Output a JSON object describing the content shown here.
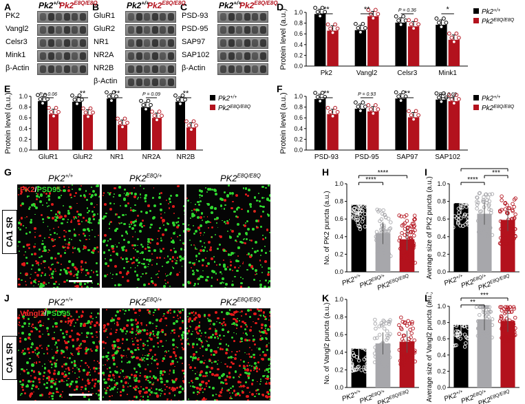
{
  "panels": {
    "A": {
      "letter": "A",
      "headers": [
        "Pk2+/+",
        "Pk2E8Q/E8Q"
      ],
      "rows": [
        "PK2",
        "Vangl2",
        "Celsr3",
        "Mink1",
        "β-Actin"
      ]
    },
    "B": {
      "letter": "B",
      "headers": [
        "Pk2+/+",
        "Pk2E8Q/E8Q"
      ],
      "rows": [
        "GluR1",
        "GluR2",
        "NR1",
        "NR2A",
        "NR2B",
        "β-Actin"
      ]
    },
    "C": {
      "letter": "C",
      "headers": [
        "Pk2+/+",
        "Pk2E8Q/E8Q"
      ],
      "rows": [
        "PSD-93",
        "PSD-95",
        "SAP97",
        "SAP102",
        "β-Actin"
      ]
    },
    "G": {
      "letter": "G",
      "cols": [
        "PK2+/+",
        "PK2E8Q/+",
        "PK2E8Q/E8Q"
      ],
      "stain_red": "PK2",
      "stain_green": "PSD95",
      "region": "CA1 SR"
    },
    "J": {
      "letter": "J",
      "cols": [
        "PK2+/+",
        "PK2E8Q/+",
        "PK2E8Q/E8Q"
      ],
      "stain_red": "Vangl2",
      "stain_green": "PSD95",
      "region": "CA1 SR"
    }
  },
  "legend": {
    "wt": "Pk2+/+",
    "mut": "Pk2E8Q/E8Q"
  },
  "colors": {
    "wt": "#000000",
    "mut": "#b3121d",
    "het": "#a7a7ab"
  },
  "chart_data": [
    {
      "id": "D",
      "type": "bar",
      "ylabel": "Protein level (a.u.)",
      "ylim": [
        0,
        1.0
      ],
      "categories": [
        "Pk2",
        "Vangl2",
        "Celsr3",
        "Mink1"
      ],
      "series": [
        {
          "name": "Pk2+/+",
          "values": [
            0.97,
            0.67,
            0.81,
            0.77
          ]
        },
        {
          "name": "Pk2E8Q/E8Q",
          "values": [
            0.66,
            0.93,
            0.74,
            0.49
          ]
        }
      ],
      "annotations": [
        "**",
        "**",
        "P = 0.36",
        "*"
      ]
    },
    {
      "id": "E",
      "type": "bar",
      "ylabel": "Protein level (a.u.)",
      "ylim": [
        0,
        1.0
      ],
      "categories": [
        "GluR1",
        "GluR2",
        "NR1",
        "NR2A",
        "NR2B"
      ],
      "series": [
        {
          "name": "Pk2+/+",
          "values": [
            0.91,
            0.9,
            0.96,
            0.8,
            0.9
          ]
        },
        {
          "name": "Pk2E8Q/E8Q",
          "values": [
            0.67,
            0.66,
            0.47,
            0.6,
            0.42
          ]
        }
      ],
      "annotations": [
        "P = 0.06",
        "**",
        "**",
        "P = 0.09",
        "**"
      ]
    },
    {
      "id": "F",
      "type": "bar",
      "ylabel": "Protein level (a.u.)",
      "ylim": [
        0,
        1.0
      ],
      "categories": [
        "PSD-93",
        "PSD-95",
        "SAP97",
        "SAP102"
      ],
      "series": [
        {
          "name": "Pk2+/+",
          "values": [
            0.95,
            0.77,
            0.96,
            0.94
          ]
        },
        {
          "name": "Pk2E8Q/E8Q",
          "values": [
            0.67,
            0.72,
            0.61,
            0.91
          ]
        }
      ],
      "annotations": [
        "**",
        "P = 0.93",
        "**",
        "P = 0.69"
      ]
    },
    {
      "id": "H",
      "type": "bar",
      "ylabel": "No. of PK2 puncta (a.u.)",
      "ylim": [
        0,
        1.0
      ],
      "categories": [
        "PK2+/+",
        "PK2E8Q/+",
        "PK2E8Q/E8Q"
      ],
      "values": [
        0.76,
        0.44,
        0.37
      ],
      "annotations": [
        {
          "from": 0,
          "to": 1,
          "label": "****"
        },
        {
          "from": 0,
          "to": 2,
          "label": "****"
        }
      ]
    },
    {
      "id": "I",
      "type": "bar",
      "ylabel": "Average size of PK2 puncta (a.u.)",
      "ylim": [
        0,
        1.0
      ],
      "categories": [
        "PK2+/+",
        "PK2E8Q/+",
        "PK2E8Q/E8Q"
      ],
      "values": [
        0.78,
        0.66,
        0.59
      ],
      "annotations": [
        {
          "from": 0,
          "to": 1,
          "label": "****"
        },
        {
          "from": 1,
          "to": 2,
          "label": "***"
        },
        {
          "from": 0,
          "to": 2,
          "label": "****"
        }
      ]
    },
    {
      "id": "K",
      "type": "bar",
      "ylabel": "No. of Vangl2 puncta (a.u.)",
      "ylim": [
        0,
        1.0
      ],
      "categories": [
        "PK2+/+",
        "PK2E8Q/+",
        "PK2E8Q/E8Q"
      ],
      "values": [
        0.44,
        0.5,
        0.52
      ],
      "annotations": []
    },
    {
      "id": "L",
      "type": "bar",
      "ylabel": "Average size of Vangl2 puncta (a.u.)",
      "ylim": [
        0,
        1.0
      ],
      "categories": [
        "PK2+/+",
        "PK2E8Q/+",
        "PK2E8Q/E8Q"
      ],
      "values": [
        0.77,
        0.84,
        0.82
      ],
      "annotations": [
        {
          "from": 0,
          "to": 1,
          "label": "**"
        },
        {
          "from": 0,
          "to": 2,
          "label": "***"
        }
      ]
    }
  ]
}
